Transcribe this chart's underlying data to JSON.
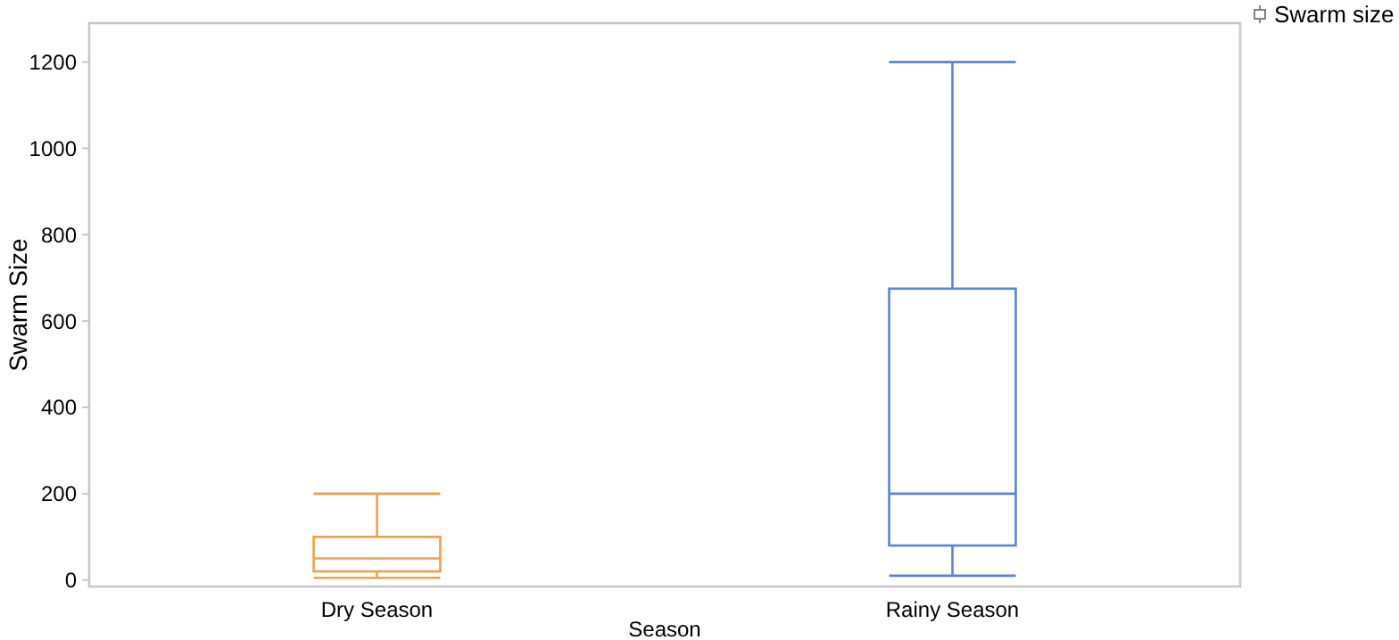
{
  "chart_data": {
    "type": "box",
    "xlabel": "Season",
    "ylabel": "Swarm Size",
    "categories": [
      "Dry Season",
      "Rainy Season"
    ],
    "series": [
      {
        "name": "Swarm size",
        "color": "#808080",
        "colors": [
          "#f0a04b",
          "#5b84d6"
        ],
        "boxes": [
          {
            "low": 5,
            "q1": 20,
            "median": 50,
            "q3": 100,
            "high": 200
          },
          {
            "low": 10,
            "q1": 80,
            "median": 200,
            "q3": 675,
            "high": 1200
          }
        ]
      }
    ],
    "ylim": [
      -15,
      1290
    ],
    "yticks": [
      0,
      200,
      400,
      600,
      800,
      1000,
      1200
    ],
    "grid": false,
    "legend": "top right"
  }
}
